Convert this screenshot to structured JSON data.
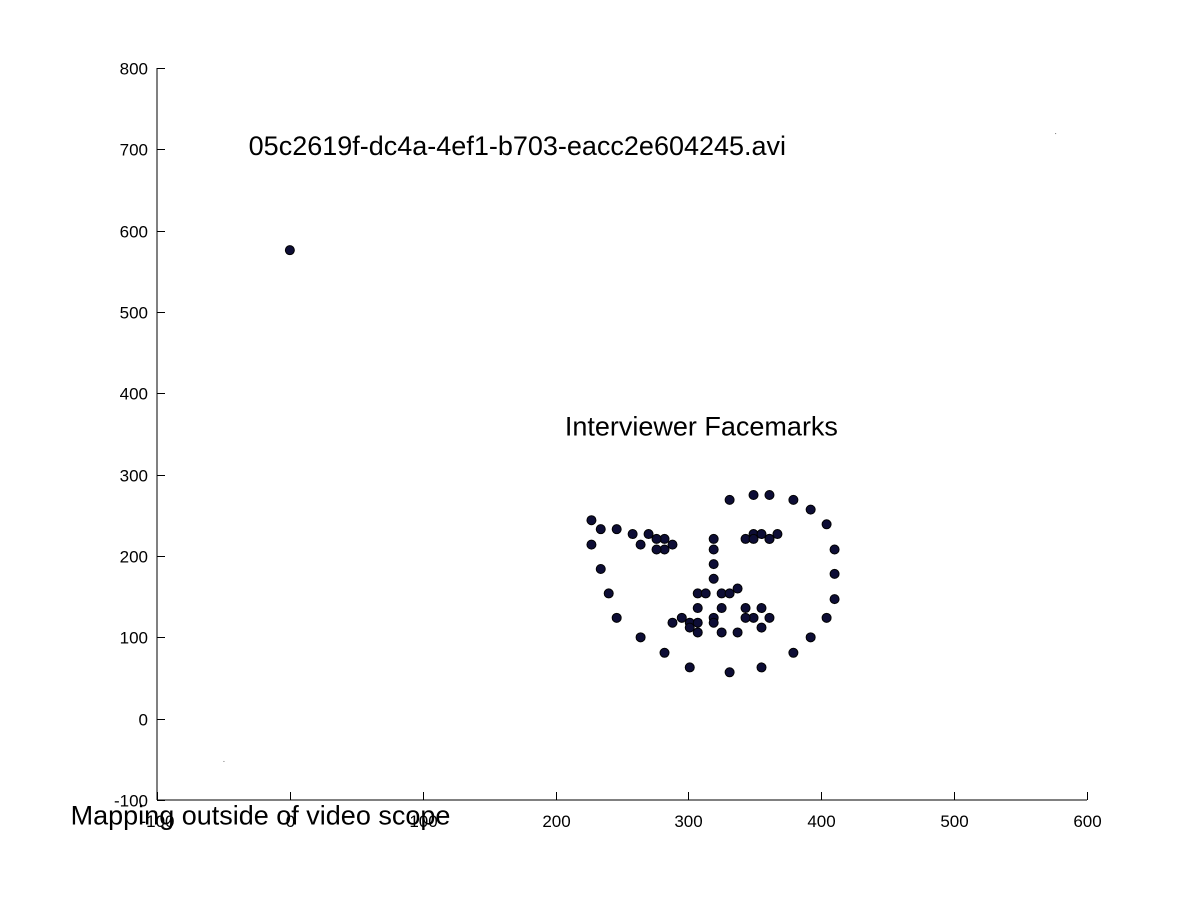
{
  "chart_data": {
    "type": "scatter",
    "title": "",
    "xlabel": "",
    "ylabel": "",
    "xlim": [
      -100,
      600
    ],
    "ylim": [
      -100,
      800
    ],
    "grid": false,
    "x_ticks": [
      -100,
      0,
      100,
      200,
      300,
      400,
      500,
      600
    ],
    "y_ticks": [
      -100,
      0,
      100,
      200,
      300,
      400,
      500,
      600,
      700,
      800
    ],
    "x_tick_labels": [
      "-100",
      "0",
      "100",
      "200",
      "300",
      "400",
      "500",
      "600"
    ],
    "y_tick_labels": [
      "-100",
      "0",
      "100",
      "200",
      "300",
      "400",
      "500",
      "600",
      "700",
      "800"
    ],
    "marker_color": "#0d0d35",
    "annotations": [
      {
        "id": "video-filename",
        "text": "05c2619f-dc4a-4ef1-b703-eacc2e604245.avi",
        "x": -31,
        "y": 693
      },
      {
        "id": "facemarks-label",
        "text": "Interviewer Facemarks",
        "x": 207,
        "y": 348
      },
      {
        "id": "scope-warning",
        "text": "Mapping outside of video scope",
        "x": -165,
        "y": -130
      }
    ],
    "series": [
      {
        "points": [
          [
            0,
            576
          ],
          [
            227,
            244
          ],
          [
            227,
            214
          ],
          [
            234,
            184
          ],
          [
            240,
            154
          ],
          [
            246,
            124
          ],
          [
            264,
            100
          ],
          [
            282,
            81
          ],
          [
            301,
            63
          ],
          [
            331,
            57
          ],
          [
            355,
            63
          ],
          [
            379,
            81
          ],
          [
            392,
            100
          ],
          [
            404,
            124
          ],
          [
            410,
            147
          ],
          [
            410,
            178
          ],
          [
            410,
            208
          ],
          [
            404,
            239
          ],
          [
            392,
            257
          ],
          [
            379,
            269
          ],
          [
            361,
            275
          ],
          [
            349,
            275
          ],
          [
            331,
            269
          ],
          [
            234,
            233
          ],
          [
            246,
            233
          ],
          [
            258,
            227
          ],
          [
            270,
            227
          ],
          [
            282,
            221
          ],
          [
            343,
            221
          ],
          [
            349,
            227
          ],
          [
            355,
            227
          ],
          [
            367,
            227
          ],
          [
            361,
            221
          ],
          [
            319,
            221
          ],
          [
            319,
            208
          ],
          [
            319,
            190
          ],
          [
            319,
            172
          ],
          [
            307,
            154
          ],
          [
            313,
            154
          ],
          [
            325,
            154
          ],
          [
            331,
            154
          ],
          [
            337,
            160
          ],
          [
            264,
            214
          ],
          [
            276,
            221
          ],
          [
            288,
            214
          ],
          [
            282,
            208
          ],
          [
            276,
            208
          ],
          [
            349,
            221
          ],
          [
            361,
            221
          ],
          [
            288,
            118
          ],
          [
            295,
            124
          ],
          [
            301,
            118
          ],
          [
            307,
            136
          ],
          [
            319,
            124
          ],
          [
            325,
            136
          ],
          [
            343,
            136
          ],
          [
            355,
            136
          ],
          [
            361,
            124
          ],
          [
            349,
            124
          ],
          [
            343,
            124
          ],
          [
            355,
            112
          ],
          [
            337,
            106
          ],
          [
            325,
            106
          ],
          [
            307,
            106
          ],
          [
            301,
            112
          ],
          [
            319,
            118
          ],
          [
            307,
            118
          ]
        ]
      }
    ],
    "specks": [
      [
        -50,
        -52
      ],
      [
        576,
        720
      ]
    ]
  }
}
